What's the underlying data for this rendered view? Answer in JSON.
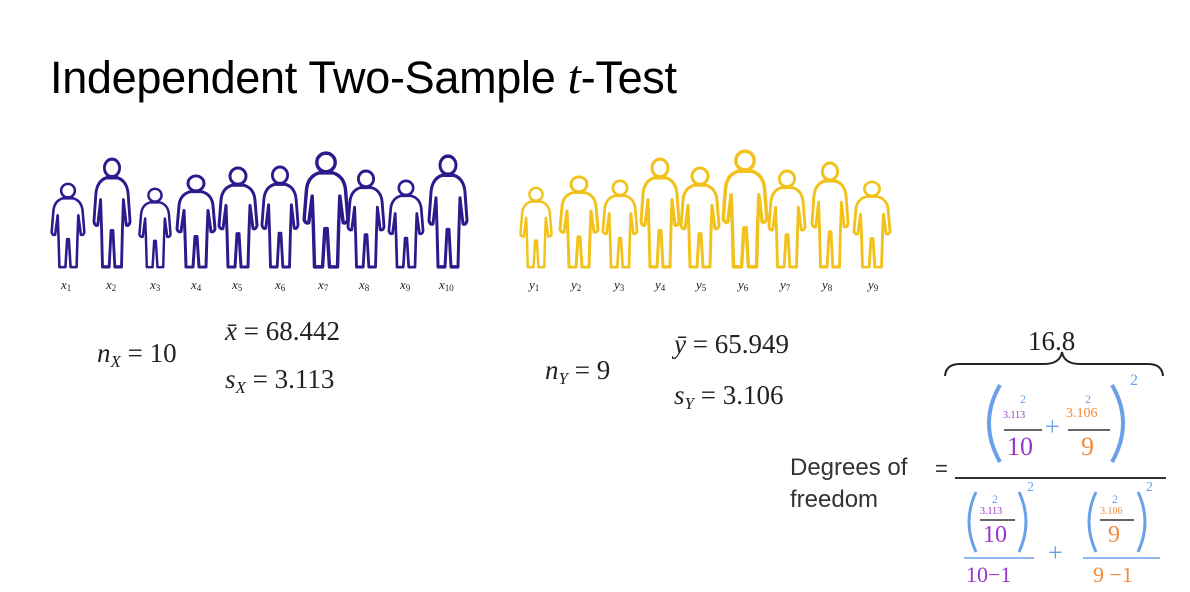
{
  "slide": {
    "title_prefix": "Independent Two-Sample ",
    "title_var": "t",
    "title_suffix": "-Test"
  },
  "colors": {
    "group_x": "#2e1a8c",
    "group_y": "#f2c21a",
    "sd_x": "#9b35c9",
    "sd_y": "#f08a3c",
    "paren": "#6aa0e8",
    "text": "#222222"
  },
  "group_x": {
    "icon": "person-silhouette-icon",
    "sample_labels": [
      "x1",
      "x2",
      "x3",
      "x4",
      "x5",
      "x6",
      "x7",
      "x8",
      "x9",
      "x10"
    ],
    "n_label": "n",
    "n_sub": "X",
    "n_value": "= 10",
    "mean_label": "x̄",
    "mean_value": "= 68.442",
    "sd_label": "s",
    "sd_sub": "X",
    "sd_value": "= 3.113"
  },
  "group_y": {
    "icon": "person-silhouette-icon",
    "sample_labels": [
      "y1",
      "y2",
      "y3",
      "y4",
      "y5",
      "y6",
      "y7",
      "y8",
      "y9"
    ],
    "n_label": "n",
    "n_sub": "Y",
    "n_value": "= 9",
    "mean_label": "ȳ",
    "mean_value": "= 65.949",
    "sd_label": "s",
    "sd_sub": "Y",
    "sd_value": "= 3.106"
  },
  "df": {
    "result": "16.8",
    "label_line1": "Degrees of",
    "label_line2": "freedom",
    "equals": "=",
    "num_sd_x": "3.113",
    "num_sd_y": "3.106",
    "num_n_x": "10",
    "num_n_y": "9",
    "exponent": "2",
    "plus": "+",
    "den_sd_x": "3.113",
    "den_sd_y": "3.106",
    "den_n_x": "10",
    "den_n_y": "9",
    "den_dof_x": "10−1",
    "den_dof_y": "9 −1"
  }
}
